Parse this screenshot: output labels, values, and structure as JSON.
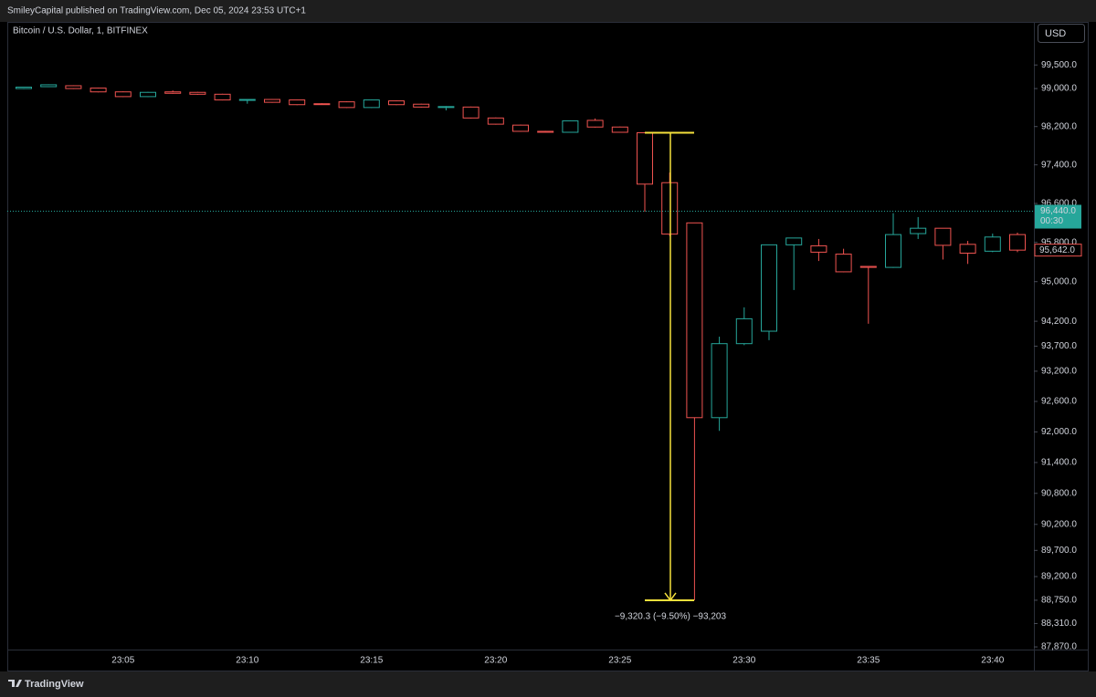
{
  "header": {
    "publisher": "SmileyCapital published on TradingView.com, Dec 05, 2024 23:53 UTC+1"
  },
  "footer": {
    "brand": "TradingView"
  },
  "chart_data": {
    "type": "candlestick",
    "title": "Bitcoin / U.S. Dollar, 1, BITFINEX",
    "currency": "USD",
    "log_scale": true,
    "grid": false,
    "up_color": "#26a69a",
    "down_color": "#ef5350",
    "categories": [
      null,
      null,
      null,
      null,
      "23:05",
      null,
      null,
      null,
      null,
      "23:10",
      null,
      null,
      null,
      null,
      "23:15",
      null,
      null,
      null,
      null,
      "23:20",
      null,
      null,
      null,
      null,
      "23:25",
      null,
      null,
      null,
      null,
      "23:30",
      null,
      null,
      null,
      null,
      "23:35",
      null,
      null,
      null,
      null,
      "23:40",
      null
    ],
    "open": [
      99000,
      99040,
      99060,
      99010,
      98930,
      98830,
      98930,
      98920,
      98880,
      98760,
      98770,
      98760,
      98680,
      98720,
      98600,
      98740,
      98670,
      98600,
      98610,
      98380,
      98230,
      98100,
      98080,
      98330,
      98190,
      98070,
      97030,
      96200,
      92280,
      93750,
      94000,
      95750,
      95730,
      95560,
      95310,
      95290,
      95980,
      96090,
      95760,
      95620,
      95960
    ],
    "high": [
      99040,
      99090,
      99070,
      99020,
      98940,
      98930,
      98960,
      98930,
      98890,
      98780,
      98780,
      98770,
      98690,
      98730,
      98770,
      98750,
      98680,
      98630,
      98620,
      98390,
      98240,
      98110,
      98330,
      98370,
      98200,
      98080,
      97240,
      96200,
      93890,
      94480,
      95750,
      95890,
      95870,
      95670,
      95320,
      96400,
      96320,
      96090,
      95830,
      95980,
      96000
    ],
    "low": [
      98990,
      99030,
      98990,
      98920,
      98820,
      98820,
      98890,
      98870,
      98750,
      98680,
      98700,
      98650,
      98660,
      98590,
      98590,
      98650,
      98600,
      98540,
      98370,
      98240,
      98090,
      98070,
      98070,
      98180,
      98070,
      96430,
      95930,
      88750,
      92020,
      93720,
      93820,
      94830,
      95420,
      95190,
      94150,
      95280,
      95870,
      95450,
      95360,
      95600,
      95600
    ],
    "close": [
      99030,
      99080,
      99000,
      98930,
      98830,
      98920,
      98900,
      98880,
      98760,
      98770,
      98710,
      98660,
      98670,
      98600,
      98760,
      98660,
      98610,
      98620,
      98380,
      98250,
      98100,
      98080,
      98320,
      98190,
      98080,
      97000,
      95970,
      92280,
      93750,
      94250,
      95750,
      95890,
      95600,
      95200,
      95290,
      95960,
      96090,
      95740,
      95580,
      95910,
      95642
    ],
    "ylim": [
      87820,
      100420
    ],
    "yticks": [
      {
        "value": 99500,
        "label": "99,500.0"
      },
      {
        "value": 99000,
        "label": "99,000.0"
      },
      {
        "value": 98200,
        "label": "98,200.0"
      },
      {
        "value": 97400,
        "label": "97,400.0"
      },
      {
        "value": 96600,
        "label": "96,600.0"
      },
      {
        "value": 95800,
        "label": "95,800.0"
      },
      {
        "value": 95000,
        "label": "95,000.0"
      },
      {
        "value": 94200,
        "label": "94,200.0"
      },
      {
        "value": 93700,
        "label": "93,700.0"
      },
      {
        "value": 93200,
        "label": "93,200.0"
      },
      {
        "value": 92600,
        "label": "92,600.0"
      },
      {
        "value": 92000,
        "label": "92,000.0"
      },
      {
        "value": 91400,
        "label": "91,400.0"
      },
      {
        "value": 90800,
        "label": "90,800.0"
      },
      {
        "value": 90200,
        "label": "90,200.0"
      },
      {
        "value": 89700,
        "label": "89,700.0"
      },
      {
        "value": 89200,
        "label": "89,200.0"
      },
      {
        "value": 88750,
        "label": "88,750.0"
      },
      {
        "value": 88310,
        "label": "88,310.0"
      },
      {
        "value": 87870,
        "label": "87,870.0"
      }
    ],
    "price_labels": [
      {
        "value": 96440,
        "label": "96,440.0",
        "countdown": "00:30",
        "color": "#26a69a"
      },
      {
        "value": 95642,
        "label": "95,642.0",
        "color": "#ef5350"
      }
    ],
    "measure": {
      "from": 98070,
      "to": 88750,
      "label": "−9,320.3 (−9.50%) −93,203",
      "color": "#f5e13c"
    }
  }
}
